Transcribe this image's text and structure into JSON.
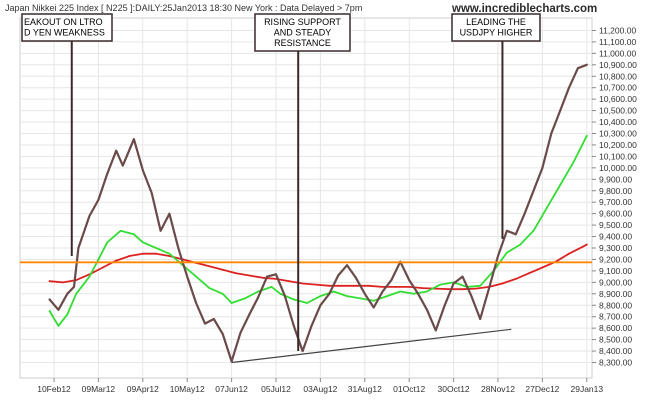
{
  "colors": {
    "price": "#6b4a4a",
    "ma_fast": "#33dd33",
    "ma_slow": "#dd2222",
    "resistance": "#ff8800",
    "support": "#444444",
    "grid": "#e6e6e6",
    "annotation_border": "#3a2a2a"
  },
  "chart_data": {
    "type": "line",
    "title": "Japan Nikkei 225 Index [ N225 ]:DAILY:25Jan2013 18:30 New York : Data Delayed > 7pm",
    "brand": "www.incrediblecharts.com",
    "x_ticks": [
      "10Feb12",
      "09Mar12",
      "09Apr12",
      "10May12",
      "07Jun12",
      "05Jul12",
      "03Aug12",
      "31Aug12",
      "01Oct12",
      "30Oct12",
      "28Nov12",
      "27Dec12",
      "29Jan13"
    ],
    "x_range": [
      1,
      13
    ],
    "y_ticks": [
      "8,300.00",
      "8,400.00",
      "8,500.00",
      "8,600.00",
      "8,700.00",
      "8,800.00",
      "8,900.00",
      "9,000.00",
      "9,100.00",
      "9,200.00",
      "9,300.00",
      "9,400.00",
      "9,500.00",
      "9,600.00",
      "9,700.00",
      "9,800.00",
      "9,900.00",
      "10,000.00",
      "10,100.00",
      "10,200.00",
      "10,300.00",
      "10,400.00",
      "10,500.00",
      "10,600.00",
      "10,700.00",
      "10,800.00",
      "10,900.00",
      "11,000.00",
      "11,100.00",
      "11,200.00"
    ],
    "ylim": [
      8250,
      11250
    ],
    "grid": true,
    "series": [
      {
        "key": "price",
        "points": [
          [
            0.9,
            8850
          ],
          [
            1.1,
            8760
          ],
          [
            1.3,
            8900
          ],
          [
            1.45,
            8960
          ],
          [
            1.55,
            9300
          ],
          [
            1.8,
            9580
          ],
          [
            2.0,
            9720
          ],
          [
            2.2,
            9950
          ],
          [
            2.4,
            10150
          ],
          [
            2.55,
            10020
          ],
          [
            2.8,
            10250
          ],
          [
            3.0,
            9980
          ],
          [
            3.2,
            9780
          ],
          [
            3.4,
            9450
          ],
          [
            3.6,
            9600
          ],
          [
            3.8,
            9300
          ],
          [
            4.0,
            9050
          ],
          [
            4.2,
            8820
          ],
          [
            4.4,
            8640
          ],
          [
            4.6,
            8680
          ],
          [
            4.8,
            8550
          ],
          [
            5.0,
            8310
          ],
          [
            5.2,
            8560
          ],
          [
            5.4,
            8720
          ],
          [
            5.6,
            8870
          ],
          [
            5.8,
            9050
          ],
          [
            6.0,
            9070
          ],
          [
            6.2,
            8880
          ],
          [
            6.4,
            8620
          ],
          [
            6.6,
            8400
          ],
          [
            6.8,
            8620
          ],
          [
            7.0,
            8800
          ],
          [
            7.2,
            8900
          ],
          [
            7.4,
            9060
          ],
          [
            7.6,
            9150
          ],
          [
            7.8,
            9040
          ],
          [
            8.0,
            8900
          ],
          [
            8.2,
            8780
          ],
          [
            8.4,
            8920
          ],
          [
            8.6,
            9020
          ],
          [
            8.8,
            9180
          ],
          [
            9.0,
            9020
          ],
          [
            9.2,
            8900
          ],
          [
            9.4,
            8760
          ],
          [
            9.6,
            8580
          ],
          [
            9.8,
            8800
          ],
          [
            10.0,
            8990
          ],
          [
            10.2,
            9050
          ],
          [
            10.4,
            8880
          ],
          [
            10.6,
            8680
          ],
          [
            10.8,
            8950
          ],
          [
            11.0,
            9230
          ],
          [
            11.2,
            9450
          ],
          [
            11.4,
            9420
          ],
          [
            11.6,
            9600
          ],
          [
            11.8,
            9800
          ],
          [
            12.0,
            10000
          ],
          [
            12.2,
            10300
          ],
          [
            12.4,
            10500
          ],
          [
            12.6,
            10700
          ],
          [
            12.8,
            10870
          ],
          [
            13.0,
            10900
          ]
        ]
      },
      {
        "key": "ma_fast",
        "points": [
          [
            0.9,
            8750
          ],
          [
            1.1,
            8620
          ],
          [
            1.3,
            8720
          ],
          [
            1.5,
            8900
          ],
          [
            1.8,
            9050
          ],
          [
            2.0,
            9200
          ],
          [
            2.2,
            9350
          ],
          [
            2.5,
            9450
          ],
          [
            2.8,
            9420
          ],
          [
            3.0,
            9350
          ],
          [
            3.3,
            9300
          ],
          [
            3.6,
            9250
          ],
          [
            3.9,
            9150
          ],
          [
            4.2,
            9050
          ],
          [
            4.5,
            8950
          ],
          [
            4.8,
            8900
          ],
          [
            5.0,
            8820
          ],
          [
            5.3,
            8860
          ],
          [
            5.6,
            8920
          ],
          [
            5.9,
            8960
          ],
          [
            6.1,
            8900
          ],
          [
            6.4,
            8850
          ],
          [
            6.7,
            8820
          ],
          [
            7.0,
            8880
          ],
          [
            7.3,
            8920
          ],
          [
            7.6,
            8880
          ],
          [
            7.9,
            8860
          ],
          [
            8.2,
            8840
          ],
          [
            8.5,
            8880
          ],
          [
            8.8,
            8920
          ],
          [
            9.1,
            8900
          ],
          [
            9.4,
            8920
          ],
          [
            9.7,
            8980
          ],
          [
            10.0,
            9000
          ],
          [
            10.3,
            8960
          ],
          [
            10.6,
            8970
          ],
          [
            10.9,
            9100
          ],
          [
            11.2,
            9260
          ],
          [
            11.5,
            9330
          ],
          [
            11.8,
            9450
          ],
          [
            12.1,
            9650
          ],
          [
            12.4,
            9850
          ],
          [
            12.7,
            10050
          ],
          [
            13.0,
            10280
          ]
        ]
      },
      {
        "key": "ma_slow",
        "points": [
          [
            0.9,
            9010
          ],
          [
            1.2,
            9000
          ],
          [
            1.5,
            9020
          ],
          [
            1.8,
            9070
          ],
          [
            2.1,
            9130
          ],
          [
            2.4,
            9190
          ],
          [
            2.7,
            9230
          ],
          [
            3.0,
            9250
          ],
          [
            3.3,
            9250
          ],
          [
            3.6,
            9230
          ],
          [
            3.9,
            9200
          ],
          [
            4.2,
            9170
          ],
          [
            4.5,
            9140
          ],
          [
            4.8,
            9110
          ],
          [
            5.1,
            9080
          ],
          [
            5.4,
            9060
          ],
          [
            5.7,
            9040
          ],
          [
            6.0,
            9030
          ],
          [
            6.3,
            9010
          ],
          [
            6.6,
            8990
          ],
          [
            6.9,
            8980
          ],
          [
            7.2,
            8970
          ],
          [
            7.5,
            8970
          ],
          [
            7.8,
            8970
          ],
          [
            8.1,
            8970
          ],
          [
            8.4,
            8960
          ],
          [
            8.7,
            8960
          ],
          [
            9.0,
            8960
          ],
          [
            9.3,
            8950
          ],
          [
            9.6,
            8945
          ],
          [
            9.9,
            8940
          ],
          [
            10.2,
            8940
          ],
          [
            10.5,
            8945
          ],
          [
            10.8,
            8960
          ],
          [
            11.1,
            8990
          ],
          [
            11.4,
            9030
          ],
          [
            11.7,
            9080
          ],
          [
            12.0,
            9130
          ],
          [
            12.3,
            9180
          ],
          [
            12.6,
            9250
          ],
          [
            12.9,
            9310
          ],
          [
            13.0,
            9330
          ]
        ]
      }
    ],
    "resistance_level": 9175,
    "support_line": [
      [
        5.0,
        8300
      ],
      [
        11.3,
        8590
      ]
    ],
    "annotations": [
      {
        "key": "ltro",
        "text": [
          "EAKOUT ON LTRO",
          "D YEN WEAKNESS"
        ],
        "pointer_x": 1.4,
        "pointer_y": 9230
      },
      {
        "key": "support",
        "text": [
          "RISING SUPPORT",
          "AND STEADY",
          "RESISTANCE"
        ],
        "pointer_x": 6.5,
        "pointer_y": 8400
      },
      {
        "key": "usdjpy",
        "text": [
          "LEADING THE",
          "USDJPY HIGHER"
        ],
        "pointer_x": 11.1,
        "pointer_y": 9380
      }
    ]
  }
}
